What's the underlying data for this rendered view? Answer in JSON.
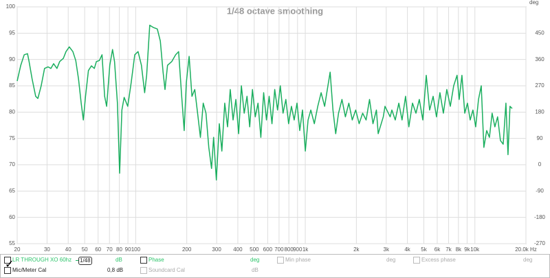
{
  "chart_data": {
    "type": "line",
    "title": "1/48 octave smoothing",
    "log_x": true,
    "grid": true,
    "y2_unit": "deg",
    "xlim": [
      20,
      20000
    ],
    "ylim": [
      55,
      100
    ],
    "y2lim": [
      -270,
      540
    ],
    "xticks": [
      20,
      30,
      40,
      50,
      60,
      70,
      80,
      90,
      100,
      200,
      300,
      400,
      500,
      600,
      700,
      800,
      900,
      {
        "value": 1000,
        "label": "1k"
      },
      {
        "value": 2000,
        "label": "2k"
      },
      {
        "value": 3000,
        "label": "3k"
      },
      {
        "value": 4000,
        "label": "4k"
      },
      {
        "value": 5000,
        "label": "5k"
      },
      {
        "value": 6000,
        "label": "6k"
      },
      {
        "value": 7000,
        "label": "7k"
      },
      {
        "value": 8000,
        "label": "8k"
      },
      {
        "value": 9000,
        "label": "9k"
      },
      {
        "value": 10000,
        "label": "10k"
      },
      {
        "value": 20000,
        "label": "20.0k Hz"
      }
    ],
    "yticks": [
      55,
      60,
      65,
      70,
      75,
      80,
      85,
      90,
      95,
      100
    ],
    "y2ticks": [
      -270,
      -180,
      -90,
      0,
      90,
      180,
      270,
      360,
      450
    ],
    "x": [
      20,
      21,
      22,
      23,
      23.5,
      24.5,
      25.7,
      26.5,
      27.7,
      29,
      30.4,
      31.6,
      32.8,
      34.3,
      35.6,
      37.4,
      38.8,
      40.6,
      42.6,
      44.3,
      46,
      47.7,
      49.1,
      50.6,
      52.6,
      54.8,
      57,
      58.6,
      61,
      63.3,
      65.6,
      67.4,
      70.3,
      73,
      75,
      78,
      80.4,
      82.9,
      85.5,
      89.7,
      94,
      98.7,
      103.2,
      108,
      112.9,
      116,
      121,
      126.8,
      134,
      139.6,
      145,
      148.8,
      154,
      163,
      172,
      179,
      186,
      193,
      198.8,
      206.6,
      214.6,
      223,
      231.6,
      240.6,
      250,
      259.7,
      269.7,
      280,
      288,
      299,
      311,
      322,
      335,
      348,
      361,
      375,
      389.5,
      404.5,
      420,
      436,
      453,
      470,
      488,
      507,
      526,
      547,
      568,
      590,
      612,
      636,
      660,
      686,
      712,
      739,
      768,
      797,
      828,
      860,
      893,
      927,
      963,
      1000,
      1038,
      1078,
      1130,
      1184,
      1240,
      1300,
      1349,
      1401,
      1455,
      1511,
      1570,
      1645,
      1724,
      1806,
      1893,
      1983,
      2078,
      2178,
      2282,
      2391,
      2506,
      2626,
      2690,
      2883,
      2950,
      3166,
      3240,
      3390,
      3560,
      3720,
      3900,
      4080,
      4286,
      4490,
      4700,
      4930,
      5165,
      5410,
      5670,
      5940,
      6220,
      6520,
      6830,
      7160,
      7500,
      7850,
      8080,
      8390,
      8710,
      9040,
      9380,
      9740,
      10110,
      10500,
      10900,
      11300,
      11740,
      12180,
      12640,
      13120,
      13620,
      14150,
      14690,
      15240,
      15680,
      16110,
      16590
    ],
    "series": [
      {
        "name": "LR THROUGH XO 60hz",
        "color": "#1aae5e",
        "values": [
          85.9,
          88.9,
          90.9,
          91.1,
          89.6,
          86.3,
          83,
          82.6,
          85,
          88.3,
          88.6,
          88.3,
          89.2,
          88.3,
          89.6,
          90.2,
          91.5,
          92.4,
          91.5,
          89.8,
          86.3,
          81.7,
          78.5,
          83,
          87.9,
          88.8,
          88.3,
          89.6,
          89.8,
          90.9,
          83,
          81.1,
          88.9,
          91.9,
          89.6,
          81.7,
          68.4,
          80.4,
          82.8,
          81.1,
          85.6,
          90.9,
          91.5,
          88.9,
          83.7,
          87,
          96.5,
          96.1,
          95.8,
          93.5,
          87.6,
          84.3,
          88.9,
          89.6,
          90.9,
          91.5,
          83.7,
          76.5,
          85.6,
          90.6,
          83,
          84.3,
          79.8,
          75.2,
          81.7,
          79.8,
          73.3,
          69.3,
          75.2,
          67.1,
          77.8,
          72.6,
          81.7,
          77.2,
          84.3,
          78.5,
          82.4,
          75.9,
          85,
          79.8,
          83,
          77.2,
          84.3,
          79.1,
          81.7,
          75.2,
          83.7,
          78.5,
          83,
          77.8,
          84.3,
          80.4,
          85,
          79.8,
          82.4,
          77.8,
          81.1,
          78.5,
          81.7,
          76.5,
          80.4,
          72.6,
          78.5,
          80.4,
          77.8,
          81.1,
          83.7,
          81.1,
          84.3,
          87.6,
          80.4,
          75.9,
          79.8,
          82.4,
          79.1,
          81.7,
          78.5,
          80.4,
          77.8,
          79.8,
          78.5,
          82.4,
          77.8,
          80.4,
          75.9,
          79.1,
          81.1,
          79.1,
          80.4,
          78.5,
          81.7,
          78.5,
          83,
          77.2,
          81.7,
          79.8,
          82.4,
          78.5,
          87,
          80.4,
          83,
          79.1,
          83.7,
          79.8,
          84.3,
          81.1,
          85,
          87,
          82.4,
          87,
          79.8,
          81.7,
          78.5,
          80.4,
          77.2,
          82.4,
          85,
          73.3,
          76.5,
          75.2,
          79.8,
          77.2,
          79.1,
          74.6,
          73.9,
          81.7,
          71.9,
          81.1,
          80.7
        ]
      }
    ]
  },
  "panel": {
    "smoothing": "1/48",
    "unit_db": "dB",
    "phase": "Phase",
    "deg": "deg",
    "min_phase": "Min phase",
    "excess_phase": "Excess phase",
    "mic_cal": "Mic/Meter Cal",
    "mic_cal_value": "0,8 dB",
    "soundcard_cal": "Soundcard Cal"
  }
}
